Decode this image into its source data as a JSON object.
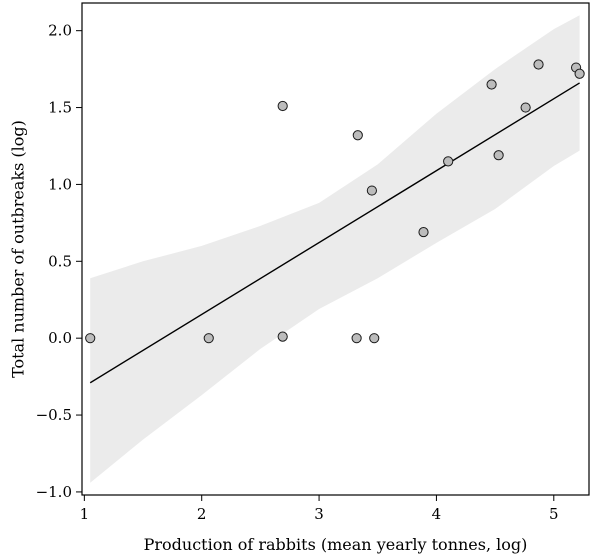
{
  "chart_data": {
    "type": "scatter",
    "xlabel": "Production of rabbits (mean yearly tonnes, log)",
    "ylabel": "Total number of outbreaks (log)",
    "xlim": [
      0.98,
      5.3
    ],
    "ylim": [
      -1.02,
      2.18
    ],
    "x_ticks": [
      1,
      2,
      3,
      4,
      5
    ],
    "y_ticks": [
      -1.0,
      -0.5,
      0.0,
      0.5,
      1.0,
      1.5,
      2.0
    ],
    "x_tick_labels": [
      "1",
      "2",
      "3",
      "4",
      "5"
    ],
    "y_tick_labels": [
      "−1.0",
      "−0.5",
      "0.0",
      "0.5",
      "1.0",
      "1.5",
      "2.0"
    ],
    "points": [
      {
        "x": 1.05,
        "y": 0.0
      },
      {
        "x": 2.06,
        "y": 0.0
      },
      {
        "x": 2.69,
        "y": 0.01
      },
      {
        "x": 2.69,
        "y": 1.51
      },
      {
        "x": 3.32,
        "y": 0.0
      },
      {
        "x": 3.33,
        "y": 1.32
      },
      {
        "x": 3.45,
        "y": 0.96
      },
      {
        "x": 3.47,
        "y": 0.0
      },
      {
        "x": 3.89,
        "y": 0.69
      },
      {
        "x": 4.1,
        "y": 1.15
      },
      {
        "x": 4.47,
        "y": 1.65
      },
      {
        "x": 4.53,
        "y": 1.19
      },
      {
        "x": 4.76,
        "y": 1.5
      },
      {
        "x": 4.87,
        "y": 1.78
      },
      {
        "x": 5.19,
        "y": 1.76
      },
      {
        "x": 5.22,
        "y": 1.72
      }
    ],
    "regression_line": {
      "x": [
        1.05,
        5.22
      ],
      "y": [
        -0.29,
        1.66
      ]
    },
    "confidence_band": {
      "x": [
        1.05,
        1.5,
        2.0,
        2.5,
        3.0,
        3.5,
        4.0,
        4.5,
        5.0,
        5.22
      ],
      "upper": [
        0.39,
        0.5,
        0.6,
        0.73,
        0.88,
        1.13,
        1.46,
        1.75,
        2.01,
        2.1
      ],
      "lower": [
        -0.94,
        -0.66,
        -0.37,
        -0.07,
        0.19,
        0.39,
        0.62,
        0.84,
        1.12,
        1.22
      ]
    },
    "colors": {
      "point_fill": "#bcbcbc",
      "point_stroke": "#1a1a1a",
      "line": "#000000",
      "band": "#ebebeb",
      "axes": "#000000"
    },
    "grid": false,
    "legend": "none"
  }
}
